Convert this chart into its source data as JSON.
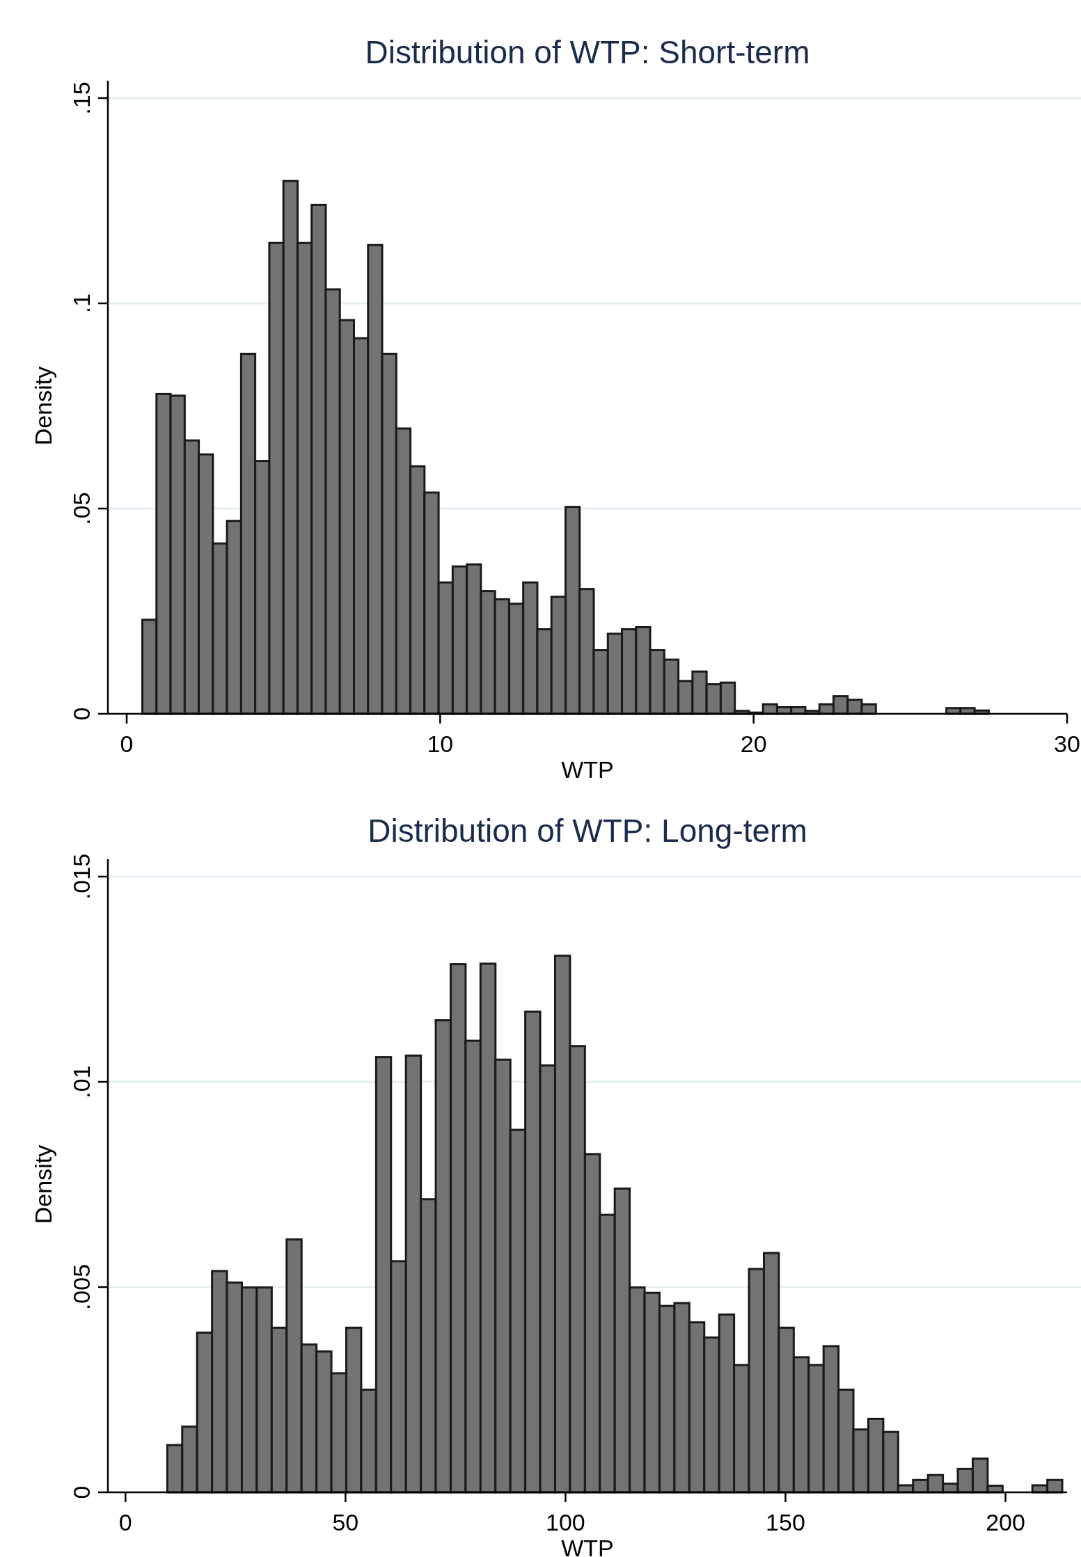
{
  "chart_data": [
    {
      "type": "histogram",
      "title": "Distribution of WTP: Short-term",
      "xlabel": "WTP",
      "ylabel": "Density",
      "color": "#737373",
      "grid": "y",
      "xlim": [
        -0.6,
        30
      ],
      "xticks": [
        0,
        10,
        20,
        30
      ],
      "ylim": [
        0,
        0.15
      ],
      "yticks": [
        {
          "value": 0,
          "label": "0"
        },
        {
          "value": 0.05,
          "label": ".05"
        },
        {
          "value": 0.1,
          "label": ".1"
        },
        {
          "value": 0.15,
          "label": ".15"
        }
      ],
      "bins": [
        0.5,
        0.95,
        1.4,
        1.85,
        2.3,
        2.75,
        3.2,
        3.65,
        4.1,
        4.55,
        5,
        5.45,
        5.9,
        6.35,
        6.8,
        7.25,
        7.7,
        8.15,
        8.6,
        9.05,
        9.5,
        9.95,
        10.4,
        10.85,
        11.3,
        11.75,
        12.2,
        12.65,
        13.1,
        13.55,
        14,
        14.45,
        14.9,
        15.35,
        15.8,
        16.25,
        16.7,
        17.15,
        17.6,
        18.05,
        18.5,
        18.95,
        19.4,
        19.85,
        20.3,
        20.75,
        21.2,
        21.65,
        22.1,
        22.55,
        23,
        23.45,
        23.9,
        24.35,
        24.8,
        25.25,
        25.7,
        26.15,
        26.6,
        27.05,
        27.5
      ],
      "values": [
        0.0229,
        0.0779,
        0.0775,
        0.0666,
        0.0632,
        0.0415,
        0.047,
        0.0877,
        0.0616,
        0.1147,
        0.1298,
        0.1147,
        0.124,
        0.1034,
        0.0959,
        0.0915,
        0.1142,
        0.0877,
        0.0695,
        0.0603,
        0.0539,
        0.032,
        0.0359,
        0.0364,
        0.0299,
        0.0279,
        0.0268,
        0.032,
        0.0206,
        0.0285,
        0.0504,
        0.0304,
        0.0155,
        0.0195,
        0.0206,
        0.0211,
        0.0155,
        0.0132,
        0.008,
        0.0103,
        0.0072,
        0.0076,
        0.0007,
        0.0003,
        0.0023,
        0.0016,
        0.0016,
        0.0007,
        0.0023,
        0.0043,
        0.0034,
        0.0023,
        0,
        0,
        0,
        0,
        0,
        0.0014,
        0.0014,
        0.0008
      ]
    },
    {
      "type": "histogram",
      "title": "Distribution of WTP: Long-term",
      "xlabel": "WTP",
      "ylabel": "Density",
      "color": "#737373",
      "grid": "y",
      "xlim": [
        -4,
        214
      ],
      "xticks": [
        0,
        50,
        100,
        150,
        200
      ],
      "ylim": [
        0,
        0.015
      ],
      "yticks": [
        {
          "value": 0,
          "label": "0"
        },
        {
          "value": 0.005,
          "label": ".005"
        },
        {
          "value": 0.01,
          "label": ".01"
        },
        {
          "value": 0.015,
          "label": ".015"
        }
      ],
      "bins": [
        9.5,
        12.89,
        16.28,
        19.67,
        23.06,
        26.45,
        29.84,
        33.23,
        36.62,
        40.01,
        43.4,
        46.79,
        50.18,
        53.57,
        56.96,
        60.35,
        63.74,
        67.13,
        70.52,
        73.91,
        77.3,
        80.69,
        84.08,
        87.47,
        90.86,
        94.25,
        97.64,
        101.03,
        104.42,
        107.81,
        111.2,
        114.59,
        117.98,
        121.37,
        124.76,
        128.15,
        131.54,
        134.93,
        138.32,
        141.71,
        145.1,
        148.49,
        151.88,
        155.27,
        158.66,
        162.05,
        165.44,
        168.83,
        172.22,
        175.61,
        179,
        182.39,
        185.78,
        189.17,
        192.56,
        195.95,
        199.34,
        202.73,
        206.12,
        209.51,
        212.9
      ],
      "values": [
        0.00115,
        0.0016,
        0.00389,
        0.00539,
        0.00511,
        0.00499,
        0.00499,
        0.00401,
        0.00616,
        0.0036,
        0.00343,
        0.0029,
        0.00401,
        0.0025,
        0.0106,
        0.00563,
        0.01064,
        0.00714,
        0.0115,
        0.01287,
        0.011,
        0.01288,
        0.01054,
        0.00883,
        0.01171,
        0.0104,
        0.01307,
        0.01087,
        0.00824,
        0.00676,
        0.0074,
        0.00499,
        0.00486,
        0.00454,
        0.00461,
        0.00414,
        0.00377,
        0.00433,
        0.0031,
        0.00544,
        0.00583,
        0.00401,
        0.00329,
        0.0031,
        0.00356,
        0.0025,
        0.00153,
        0.00179,
        0.00147,
        0.00017,
        0.0003,
        0.00042,
        0.00021,
        0.00057,
        0.00082,
        0.00016,
        0,
        0,
        0.00017,
        0.0003
      ]
    }
  ]
}
